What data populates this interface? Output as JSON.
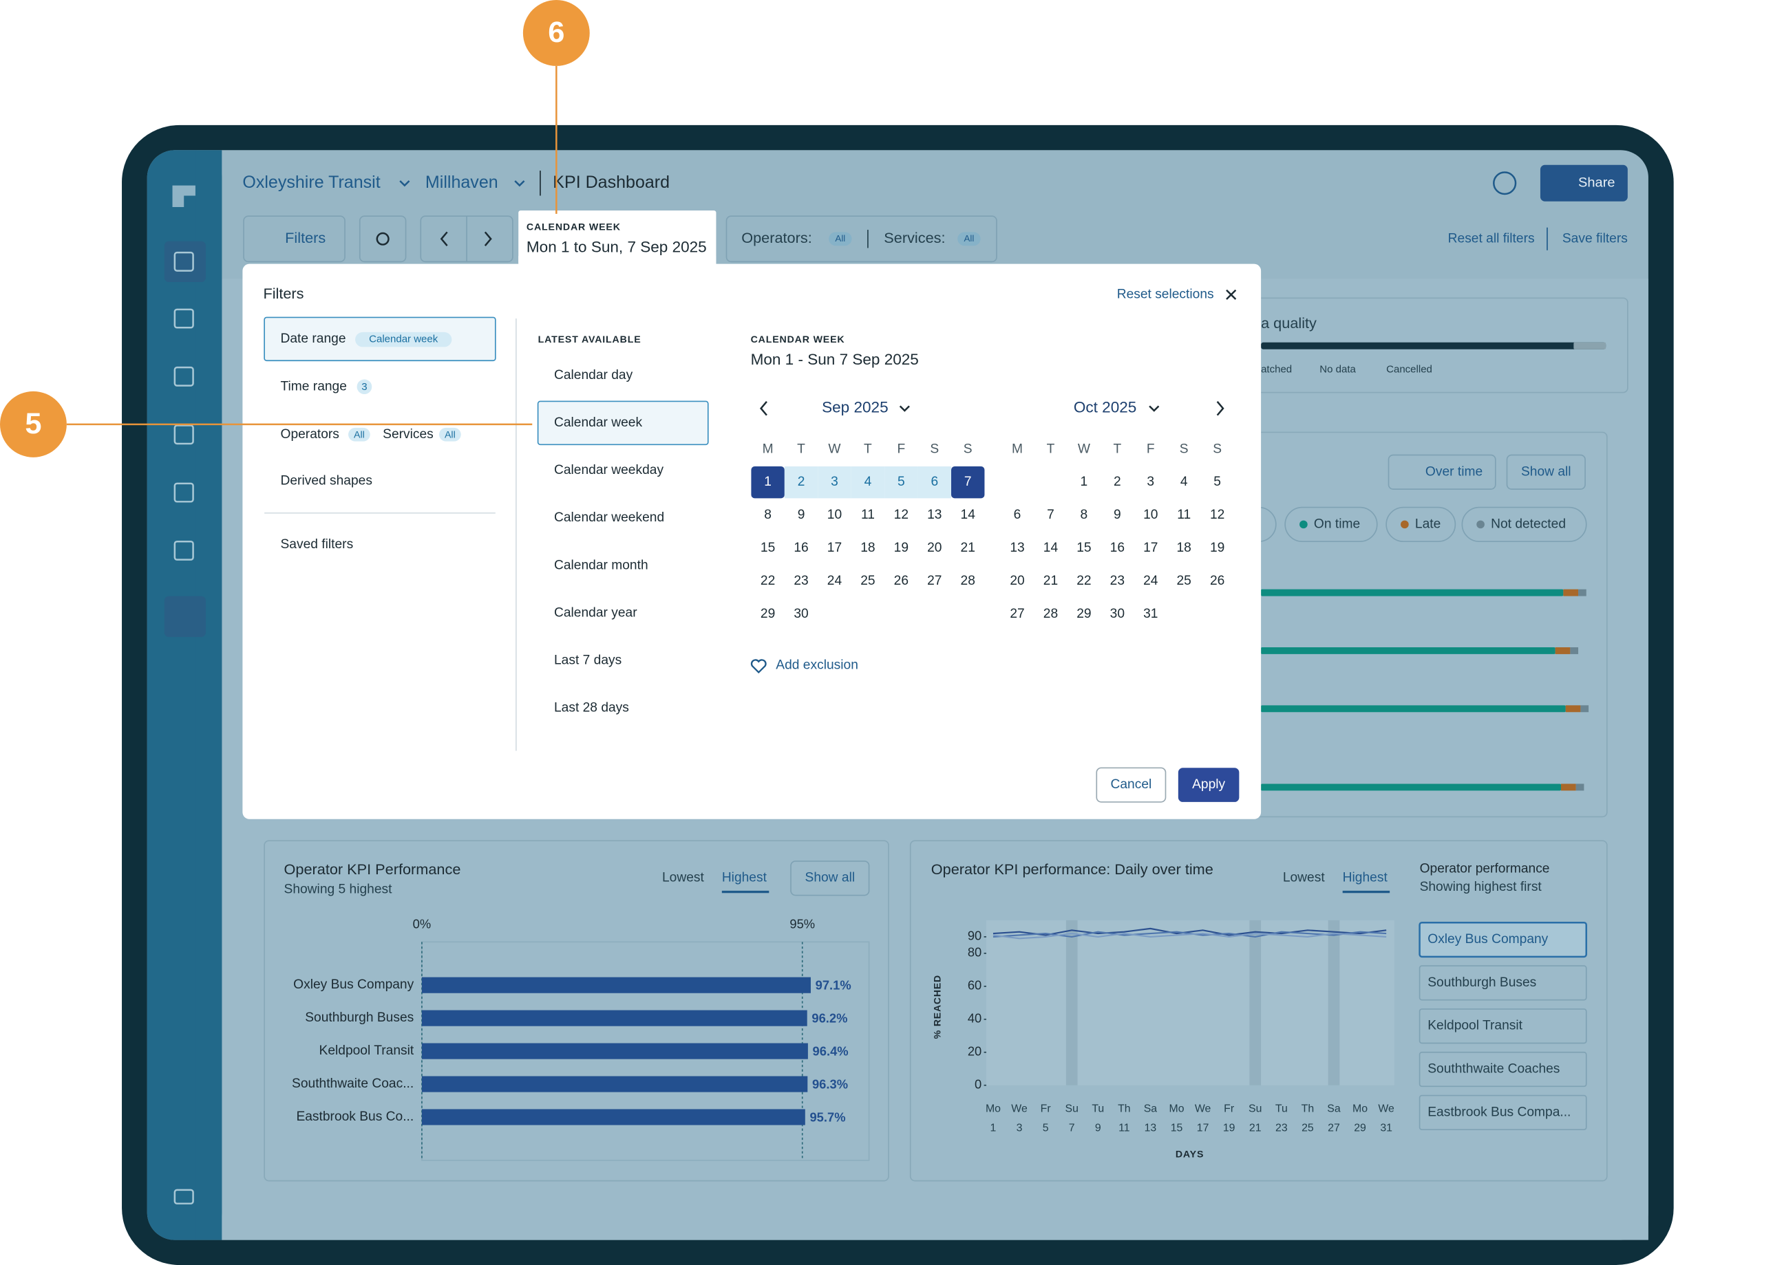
{
  "header": {
    "organisation": "Oxleyshire Transit",
    "region": "Millhaven",
    "page_title": "KPI Dashboard",
    "share": "Share"
  },
  "toolbar": {
    "filters": "Filters",
    "date_label": "CALENDAR WEEK",
    "date_value": "Mon 1 to Sun, 7 Sep 2025",
    "operators": "Operators:",
    "services": "Services:",
    "all": "All",
    "reset_all": "Reset all filters",
    "save": "Save filters"
  },
  "callouts": [
    "6",
    "5"
  ],
  "filter_panel": {
    "title": "Filters",
    "reset": "Reset selections",
    "nav": {
      "date_range": "Date range",
      "date_badge": "Calendar week",
      "time_range": "Time range",
      "time_badge": "3",
      "operators": "Operators",
      "services": "Services",
      "all": "All",
      "derived": "Derived shapes",
      "saved": "Saved filters"
    },
    "latest": "LATEST AVAILABLE",
    "options": [
      "Calendar day",
      "Calendar week",
      "Calendar weekday",
      "Calendar weekend",
      "Calendar month",
      "Calendar year",
      "Last 7 days",
      "Last 28 days"
    ],
    "calendar": {
      "label": "CALENDAR WEEK",
      "value": "Mon 1 - Sun 7 Sep 2025",
      "weekdays": [
        "M",
        "T",
        "W",
        "T",
        "F",
        "S",
        "S"
      ],
      "months": [
        {
          "name": "Sep 2025",
          "offset": 0,
          "selected": [
            1,
            7
          ],
          "days": [
            1,
            2,
            3,
            4,
            5,
            6,
            7,
            8,
            9,
            10,
            11,
            12,
            13,
            14,
            15,
            16,
            17,
            18,
            19,
            20,
            21,
            22,
            23,
            24,
            25,
            26,
            27,
            28,
            29,
            30
          ]
        },
        {
          "name": "Oct 2025",
          "offset": 2,
          "days": [
            1,
            2,
            3,
            4,
            5,
            6,
            7,
            8,
            9,
            10,
            11,
            12,
            13,
            14,
            15,
            16,
            17,
            18,
            19,
            20,
            21,
            22,
            23,
            24,
            25,
            26,
            27,
            28,
            29,
            30,
            31
          ]
        }
      ]
    },
    "add_exclusion": "Add exclusion",
    "cancel": "Cancel",
    "apply": "Apply"
  },
  "background": {
    "quality_title": "a quality",
    "quality_legend": [
      "atched",
      "No data",
      "Cancelled"
    ],
    "over_time": "Over time",
    "show_all": "Show all",
    "status": [
      "On time",
      "Late",
      "Not detected"
    ]
  },
  "kpi_chart": {
    "type": "bar",
    "title": "Operator KPI Performance",
    "subtitle": "Showing 5 highest",
    "sort": [
      "Lowest",
      "Highest"
    ],
    "show_all": "Show all",
    "categories": [
      "Oxley Bus Company",
      "Southburgh Buses",
      "Keldpool Transit",
      "Souththwaite Coac...",
      "Eastbrook Bus Co..."
    ],
    "values": [
      97.1,
      96.2,
      96.4,
      96.3,
      95.7
    ],
    "value_labels": [
      "97.1%",
      "96.2%",
      "96.4%",
      "96.3%",
      "95.7%"
    ],
    "color": "#23508f",
    "xlim": [
      0,
      95
    ],
    "xticks": [
      {
        "value": 0,
        "label": "0%"
      },
      {
        "value": 95,
        "label": "95%"
      }
    ]
  },
  "daily_chart": {
    "type": "line",
    "title": "Operator KPI performance: Daily over time",
    "sort": [
      "Lowest",
      "Highest"
    ],
    "ylabel": "% REACHED",
    "xlabel": "DAYS",
    "x_days": [
      "Mo",
      "We",
      "Fr",
      "Su",
      "Tu",
      "Th",
      "Sa",
      "Mo",
      "We",
      "Fr",
      "Su",
      "Tu",
      "Th",
      "Sa",
      "Mo",
      "We"
    ],
    "x": [
      1,
      3,
      5,
      7,
      9,
      11,
      13,
      15,
      17,
      19,
      21,
      23,
      25,
      27,
      29,
      31
    ],
    "xlim": [
      1,
      31
    ],
    "ylim": [
      0,
      100
    ],
    "yticks": [
      0,
      20,
      40,
      60,
      80,
      90
    ],
    "series": [
      {
        "color": "#2b4f8f",
        "values": [
          92,
          93,
          91,
          94,
          92,
          93,
          95,
          92,
          94,
          91,
          93,
          92,
          94,
          93,
          92,
          94
        ]
      },
      {
        "color": "#4f76ae",
        "values": [
          90,
          91,
          92,
          90,
          93,
          91,
          92,
          93,
          91,
          92,
          90,
          93,
          92,
          91,
          93,
          92
        ]
      },
      {
        "color": "#7b9cc4",
        "values": [
          91,
          89,
          90,
          92,
          90,
          92,
          90,
          91,
          92,
          90,
          92,
          91,
          90,
          92,
          91,
          90
        ]
      }
    ]
  },
  "side": {
    "title": "Operator performance",
    "subtitle": "Showing highest first",
    "operators": [
      "Oxley Bus Company",
      "Southburgh Buses",
      "Keldpool Transit",
      "Souththwaite Coaches",
      "Eastbrook Bus Compa..."
    ]
  }
}
